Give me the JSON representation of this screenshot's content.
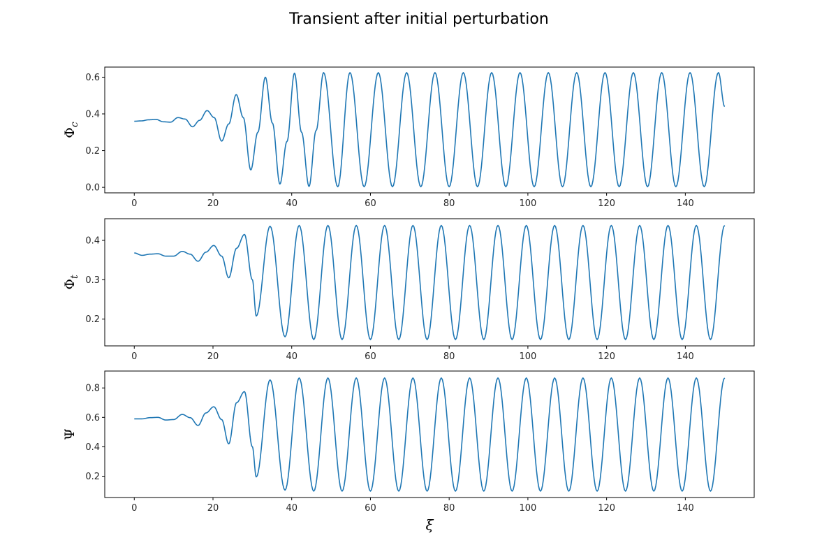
{
  "figure": {
    "title": "Transient after initial perturbation",
    "xlabel": "ξ",
    "line_color": "#1f77b4",
    "frame_color": "#000000"
  },
  "chart_data": [
    {
      "type": "line",
      "ylabel": "Φ",
      "ylabel_sub": "c",
      "xlim": [
        -7.5,
        157.5
      ],
      "ylim": [
        -0.03,
        0.655
      ],
      "x_ticks": [
        0,
        20,
        40,
        60,
        80,
        100,
        120,
        140
      ],
      "y_ticks": [
        0.0,
        0.2,
        0.4,
        0.6
      ],
      "y_tick_labels": [
        "0.0",
        "0.2",
        "0.4",
        "0.6"
      ],
      "x_range": [
        0,
        150
      ],
      "series": [
        {
          "color": "#1f77b4",
          "x": [
            0,
            1.8,
            3.7,
            5.5,
            7.4,
            9.2,
            11.1,
            12.9,
            14.8,
            16.6,
            18.5,
            20.3,
            22.2,
            24.0,
            25.9,
            27.7,
            29.6,
            31.4,
            33.3,
            35.1,
            37.0,
            38.8,
            40.7,
            42.5,
            44.4,
            46.2,
            48.1,
            51.7,
            54.8,
            58.4,
            62.0,
            65.6,
            69.2,
            72.8,
            76.4,
            80.0,
            83.6,
            87.2,
            90.8,
            94.4,
            98.0,
            101.6,
            105.2,
            108.8,
            112.4,
            116.0,
            119.6,
            123.2,
            126.8,
            130.4,
            134.0,
            137.6,
            141.2,
            144.8,
            148.4,
            150.0
          ],
          "y": [
            0.36,
            0.362,
            0.368,
            0.37,
            0.357,
            0.355,
            0.38,
            0.372,
            0.33,
            0.365,
            0.418,
            0.38,
            0.252,
            0.345,
            0.505,
            0.38,
            0.095,
            0.3,
            0.6,
            0.35,
            0.018,
            0.25,
            0.622,
            0.3,
            0.005,
            0.31,
            0.625,
            0.003,
            0.625,
            0.003,
            0.625,
            0.003,
            0.625,
            0.003,
            0.625,
            0.003,
            0.625,
            0.003,
            0.625,
            0.003,
            0.625,
            0.003,
            0.625,
            0.003,
            0.625,
            0.003,
            0.625,
            0.003,
            0.625,
            0.003,
            0.625,
            0.003,
            0.625,
            0.003,
            0.625,
            0.44
          ]
        }
      ]
    },
    {
      "type": "line",
      "ylabel": "Φ",
      "ylabel_sub": "t",
      "xlim": [
        -7.5,
        157.5
      ],
      "ylim": [
        0.132,
        0.455
      ],
      "x_ticks": [
        0,
        20,
        40,
        60,
        80,
        100,
        120,
        140
      ],
      "y_ticks": [
        0.2,
        0.3,
        0.4
      ],
      "y_tick_labels": [
        "0.2",
        "0.3",
        "0.4"
      ],
      "x_range": [
        0,
        150
      ],
      "series": [
        {
          "color": "#1f77b4",
          "x": [
            0,
            2.0,
            4.0,
            6.0,
            8.0,
            10.0,
            12.2,
            14.2,
            16.2,
            18.2,
            20.2,
            22.2,
            24.0,
            26.0,
            28.0,
            30.0,
            31.0,
            34.5,
            38.3,
            41.9,
            45.6,
            49.2,
            52.8,
            56.4,
            60.0,
            63.6,
            67.2,
            70.8,
            74.4,
            78.0,
            81.6,
            85.2,
            88.8,
            92.4,
            96.0,
            99.6,
            103.2,
            106.8,
            110.4,
            114.0,
            117.6,
            121.2,
            124.8,
            128.4,
            132.0,
            135.6,
            139.2,
            142.8,
            146.4,
            150.0
          ],
          "y": [
            0.368,
            0.362,
            0.365,
            0.366,
            0.36,
            0.36,
            0.372,
            0.365,
            0.347,
            0.37,
            0.387,
            0.36,
            0.305,
            0.38,
            0.415,
            0.3,
            0.208,
            0.436,
            0.155,
            0.438,
            0.148,
            0.438,
            0.148,
            0.438,
            0.148,
            0.438,
            0.148,
            0.438,
            0.148,
            0.438,
            0.148,
            0.438,
            0.148,
            0.438,
            0.148,
            0.438,
            0.148,
            0.438,
            0.148,
            0.438,
            0.148,
            0.438,
            0.148,
            0.438,
            0.148,
            0.438,
            0.148,
            0.438,
            0.148,
            0.438
          ]
        }
      ]
    },
    {
      "type": "line",
      "ylabel": "Ψ",
      "ylabel_sub": "",
      "xlim": [
        -7.5,
        157.5
      ],
      "ylim": [
        0.055,
        0.915
      ],
      "x_ticks": [
        0,
        20,
        40,
        60,
        80,
        100,
        120,
        140
      ],
      "y_ticks": [
        0.2,
        0.4,
        0.6,
        0.8
      ],
      "y_tick_labels": [
        "0.2",
        "0.4",
        "0.6",
        "0.8"
      ],
      "x_range": [
        0,
        150
      ],
      "series": [
        {
          "color": "#1f77b4",
          "x": [
            0,
            2.0,
            4.0,
            6.0,
            8.0,
            10.0,
            12.2,
            14.2,
            16.2,
            18.2,
            20.2,
            22.2,
            24.0,
            26.0,
            28.0,
            30.0,
            31.0,
            34.5,
            38.3,
            41.9,
            45.6,
            49.2,
            52.8,
            56.4,
            60.0,
            63.6,
            67.2,
            70.8,
            74.4,
            78.0,
            81.6,
            85.2,
            88.8,
            92.4,
            96.0,
            99.6,
            103.2,
            106.8,
            110.4,
            114.0,
            117.6,
            121.2,
            124.8,
            128.4,
            132.0,
            135.6,
            139.2,
            142.8,
            146.4,
            150.0
          ],
          "y": [
            0.59,
            0.59,
            0.598,
            0.6,
            0.582,
            0.585,
            0.62,
            0.598,
            0.545,
            0.63,
            0.672,
            0.585,
            0.42,
            0.7,
            0.775,
            0.4,
            0.195,
            0.855,
            0.105,
            0.868,
            0.098,
            0.868,
            0.098,
            0.868,
            0.098,
            0.868,
            0.098,
            0.868,
            0.098,
            0.868,
            0.098,
            0.868,
            0.098,
            0.868,
            0.098,
            0.868,
            0.098,
            0.868,
            0.098,
            0.868,
            0.098,
            0.868,
            0.098,
            0.868,
            0.098,
            0.868,
            0.098,
            0.868,
            0.098,
            0.868
          ]
        }
      ]
    }
  ]
}
